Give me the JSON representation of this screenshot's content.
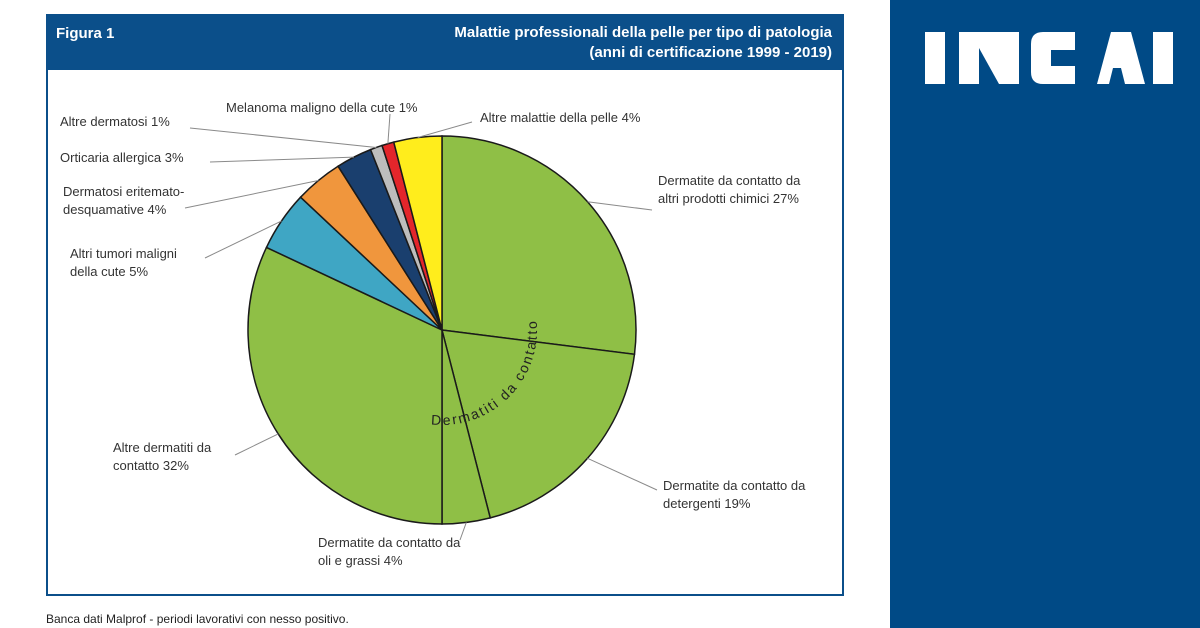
{
  "figure": {
    "label": "Figura 1",
    "title": "Malattie professionali della pelle per tipo di patologia",
    "subtitle": "(anni di certificazione 1999 - 2019)"
  },
  "footnote": "Banca dati Malprof - periodi lavorativi con nesso positivo.",
  "brand": {
    "name": "INAIL",
    "color": "#004a86"
  },
  "chart_data": {
    "type": "pie",
    "title": "Malattie professionali della pelle per tipo di patologia",
    "subtitle": "(anni di certificazione 1999 - 2019)",
    "group_label": "Dermatiti da contatto",
    "slices": [
      {
        "label": [
          "Dermatite da contatto da",
          "altri prodotti chimici 27%"
        ],
        "value": 27,
        "color": "#8fbf46"
      },
      {
        "label": [
          "Dermatite da contatto da",
          "detergenti 19%"
        ],
        "value": 19,
        "color": "#8fbf46"
      },
      {
        "label": [
          "Dermatite da contatto da",
          "oli e grassi 4%"
        ],
        "value": 4,
        "color": "#8fbf46"
      },
      {
        "label": [
          "Altre dermatiti da",
          "contatto 32%"
        ],
        "value": 32,
        "color": "#8fbf46"
      },
      {
        "label": [
          "Altri tumori maligni",
          "della cute 5%"
        ],
        "value": 5,
        "color": "#3fa6c4"
      },
      {
        "label": [
          "Dermatosi eritemato-",
          "desquamative 4%"
        ],
        "value": 4,
        "color": "#f0963d"
      },
      {
        "label": [
          "Orticaria allergica 3%"
        ],
        "value": 3,
        "color": "#1a3f6e"
      },
      {
        "label": [
          "Altre dermatosi 1%"
        ],
        "value": 1,
        "color": "#bdbdbd"
      },
      {
        "label": [
          "Melanoma maligno della cute 1%"
        ],
        "value": 1,
        "color": "#e3262b"
      },
      {
        "label": [
          "Altre malattie della pelle 4%"
        ],
        "value": 4,
        "color": "#ffed1c"
      }
    ]
  }
}
